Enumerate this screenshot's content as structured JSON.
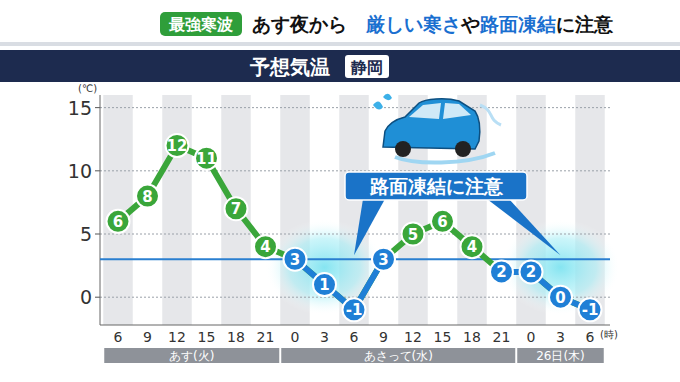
{
  "header": {
    "tag": "最強寒波",
    "parts": [
      {
        "text": "あす夜から　",
        "color": "#111111"
      },
      {
        "text": "厳しい寒さ",
        "color": "#1a6fd0"
      },
      {
        "text": "や",
        "color": "#111111"
      },
      {
        "text": "路面凍結",
        "color": "#1a6fd0"
      },
      {
        "text": "に注意",
        "color": "#111111"
      }
    ]
  },
  "chart_data": {
    "type": "line",
    "title": "予想気温",
    "subtitle": "静岡",
    "x_label": "(時)",
    "y_label": "(℃)",
    "categories": [
      "6",
      "9",
      "12",
      "15",
      "18",
      "21",
      "0",
      "3",
      "6",
      "9",
      "12",
      "15",
      "18",
      "21",
      "0",
      "3",
      "6"
    ],
    "values": [
      6,
      8,
      12,
      11,
      7,
      4,
      3,
      1,
      -1,
      3,
      5,
      6,
      4,
      2,
      2,
      0,
      -1
    ],
    "color": "#3aa63a",
    "colors": [
      "#3aa63a",
      "#3aa63a",
      "#3aa63a",
      "#3aa63a",
      "#3aa63a",
      "#3aa63a",
      "#1f7fd6",
      "#1f7fd6",
      "#1f7fd6",
      "#1f7fd6",
      "#3aa63a",
      "#3aa63a",
      "#3aa63a",
      "#1f7fd6",
      "#1f7fd6",
      "#1f7fd6",
      "#1f7fd6"
    ],
    "marker": "circle",
    "data_labels": true,
    "grid": true,
    "ylim": [
      -2.2,
      16
    ],
    "yticks": [
      0,
      5,
      10,
      15
    ],
    "reference_line": 3,
    "days": [
      {
        "label": "あす(火)",
        "from": 0,
        "to": 5
      },
      {
        "label": "あさって(水)",
        "from": 6,
        "to": 13
      },
      {
        "label": "26日(木)",
        "from": 14,
        "to": 16
      }
    ],
    "highlight_ranges": [
      [
        6,
        8
      ],
      [
        14,
        16
      ]
    ],
    "annotation": {
      "text": "路面凍結に注意",
      "points": [
        8,
        15
      ]
    }
  }
}
